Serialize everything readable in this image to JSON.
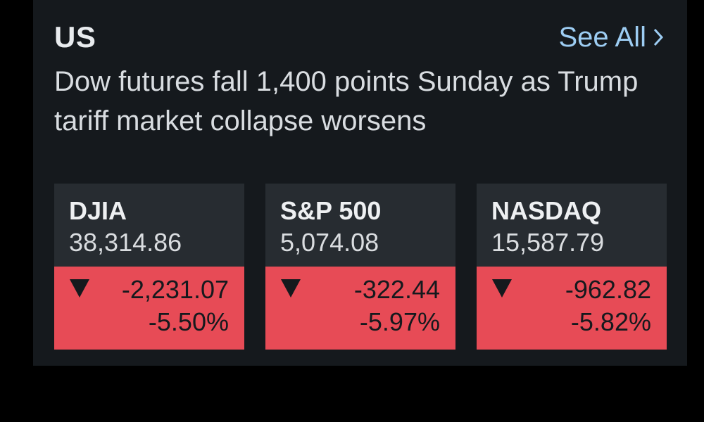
{
  "section": {
    "title": "US",
    "see_all_label": "See All"
  },
  "headline": "Dow futures fall 1,400 points Sunday as Trump tariff market collapse worsens",
  "indices": [
    {
      "name": "DJIA",
      "price": "38,314.86",
      "change": "-2,231.07",
      "change_pct": "-5.50%"
    },
    {
      "name": "S&P 500",
      "price": "5,074.08",
      "change": "-322.44",
      "change_pct": "-5.97%"
    },
    {
      "name": "NASDAQ",
      "price": "15,587.79",
      "change": "-962.82",
      "change_pct": "-5.82%"
    }
  ],
  "colors": {
    "background": "#000000",
    "panel": "#15191d",
    "card": "#272c31",
    "link": "#9dcdf3",
    "loss": "#e74b56"
  },
  "icons": {
    "see_all": "chevron-right-icon",
    "trend": "triangle-down-icon"
  }
}
